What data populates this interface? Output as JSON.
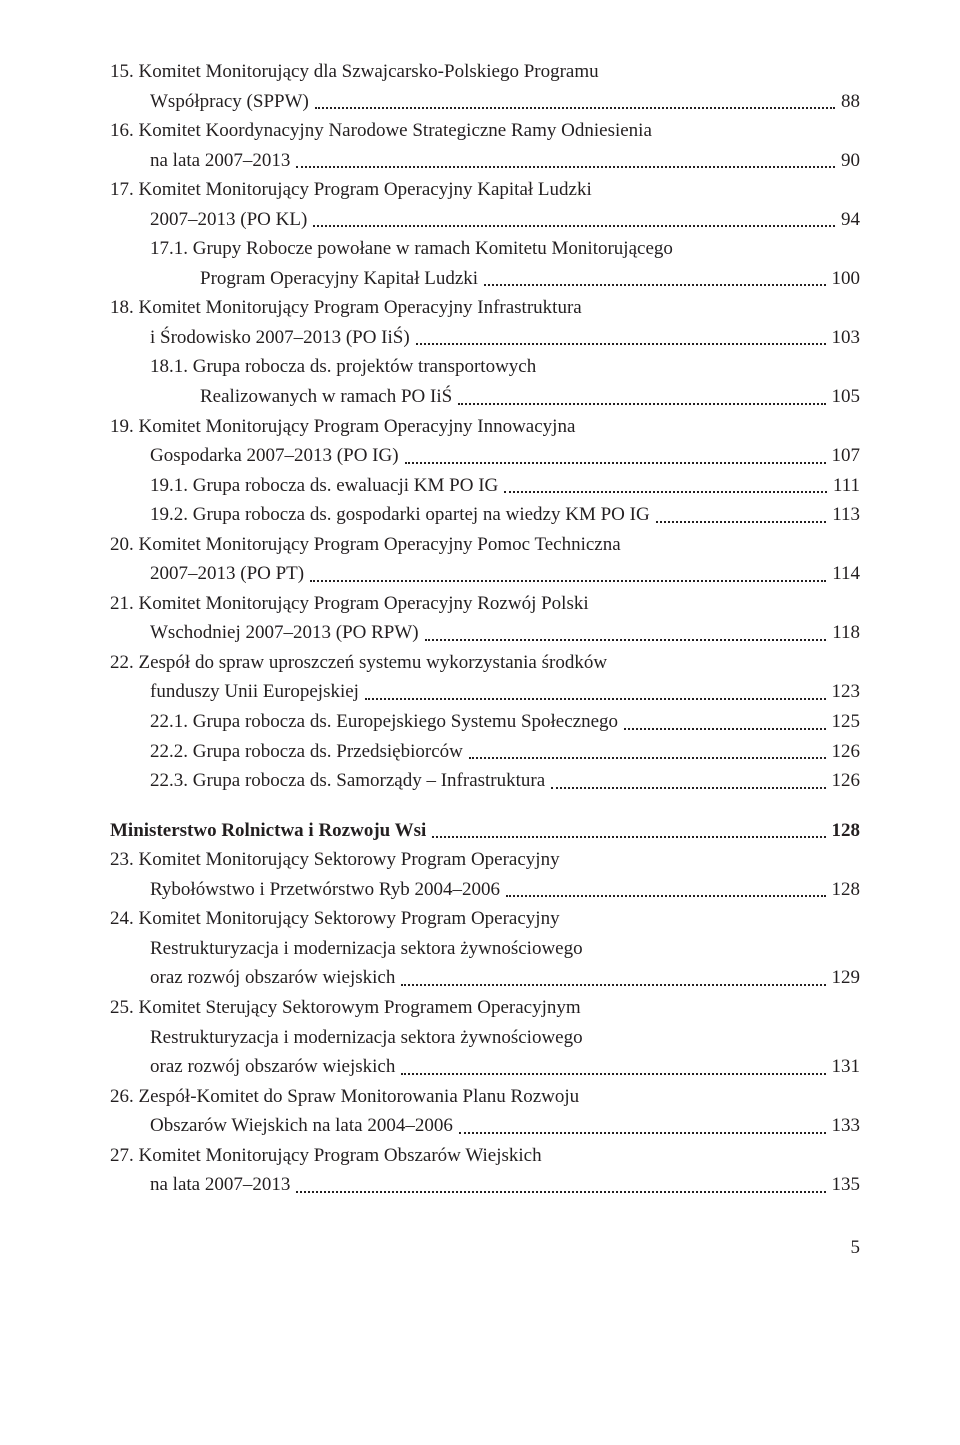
{
  "colors": {
    "text": "#231f20",
    "background": "#ffffff"
  },
  "typography": {
    "font_family": "Times New Roman",
    "body_size_pt": 14,
    "line_height": 1.45
  },
  "page_number": "5",
  "toc": [
    {
      "num": "15.",
      "lines": [
        "Komitet Monitorujący dla Szwajcarsko-Polskiego Programu",
        "Współpracy (SPPW)"
      ],
      "page": "88",
      "bold": false,
      "indent": 1
    },
    {
      "num": "16.",
      "lines": [
        "Komitet Koordynacyjny Narodowe Strategiczne Ramy Odniesienia",
        "na lata 2007–2013"
      ],
      "page": "90",
      "bold": false,
      "indent": 1
    },
    {
      "num": "17.",
      "lines": [
        "Komitet Monitorujący Program Operacyjny Kapitał Ludzki",
        "2007–2013 (PO KL)"
      ],
      "page": "94",
      "bold": false,
      "indent": 1
    },
    {
      "num": "17.1.",
      "lines": [
        "Grupy Robocze powołane w ramach Komitetu Monitorującego",
        "Program Operacyjny Kapitał Ludzki"
      ],
      "page": "100",
      "bold": false,
      "indent": 2
    },
    {
      "num": "18.",
      "lines": [
        "Komitet Monitorujący Program Operacyjny Infrastruktura",
        "i Środowisko 2007–2013 (PO IiŚ)"
      ],
      "page": "103",
      "bold": false,
      "indent": 1
    },
    {
      "num": "18.1.",
      "lines": [
        "Grupa robocza ds. projektów transportowych",
        "Realizowanych w ramach PO IiŚ"
      ],
      "page": "105",
      "bold": false,
      "indent": 2
    },
    {
      "num": "19.",
      "lines": [
        "Komitet Monitorujący Program Operacyjny Innowacyjna",
        "Gospodarka 2007–2013 (PO IG)"
      ],
      "page": "107",
      "bold": false,
      "indent": 1
    },
    {
      "num": "19.1.",
      "lines": [
        "Grupa robocza ds. ewaluacji KM PO IG"
      ],
      "page": "111",
      "bold": false,
      "indent": 2
    },
    {
      "num": "19.2.",
      "lines": [
        "Grupa robocza ds. gospodarki opartej na wiedzy KM PO IG"
      ],
      "page": "113",
      "bold": false,
      "indent": 2
    },
    {
      "num": "20.",
      "lines": [
        "Komitet Monitorujący Program Operacyjny Pomoc Techniczna",
        "2007–2013 (PO PT)"
      ],
      "page": "114",
      "bold": false,
      "indent": 1
    },
    {
      "num": "21.",
      "lines": [
        "Komitet Monitorujący Program Operacyjny Rozwój Polski",
        "Wschodniej 2007–2013 (PO RPW)"
      ],
      "page": "118",
      "bold": false,
      "indent": 1
    },
    {
      "num": "22.",
      "lines": [
        "Zespół do spraw uproszczeń systemu wykorzystania środków",
        "funduszy Unii Europejskiej"
      ],
      "page": "123",
      "bold": false,
      "indent": 1
    },
    {
      "num": "22.1.",
      "lines": [
        "Grupa robocza ds. Europejskiego Systemu Społecznego"
      ],
      "page": "125",
      "bold": false,
      "indent": 2
    },
    {
      "num": "22.2.",
      "lines": [
        "Grupa robocza ds. Przedsiębiorców"
      ],
      "page": "126",
      "bold": false,
      "indent": 2
    },
    {
      "num": "22.3.",
      "lines": [
        "Grupa robocza ds. Samorządy – Infrastruktura"
      ],
      "page": "126",
      "bold": false,
      "indent": 2
    },
    {
      "gap": true
    },
    {
      "num": "",
      "lines": [
        "Ministerstwo Rolnictwa i Rozwoju Wsi"
      ],
      "page": "128",
      "bold": true,
      "indent": 1
    },
    {
      "num": "23.",
      "lines": [
        "Komitet Monitorujący Sektorowy Program Operacyjny",
        "Rybołówstwo i Przetwórstwo Ryb 2004–2006"
      ],
      "page": "128",
      "bold": false,
      "indent": 1
    },
    {
      "num": "24.",
      "lines": [
        "Komitet Monitorujący Sektorowy Program Operacyjny",
        "Restrukturyzacja i modernizacja sektora żywnościowego",
        "oraz rozwój obszarów wiejskich"
      ],
      "page": "129",
      "bold": false,
      "indent": 1
    },
    {
      "num": "25.",
      "lines": [
        "Komitet Sterujący Sektorowym Programem Operacyjnym",
        "Restrukturyzacja i modernizacja sektora żywnościowego",
        "oraz rozwój obszarów wiejskich"
      ],
      "page": "131",
      "bold": false,
      "indent": 1
    },
    {
      "num": "26.",
      "lines": [
        "Zespół-Komitet do Spraw Monitorowania Planu Rozwoju",
        "Obszarów Wiejskich na lata 2004–2006"
      ],
      "page": "133",
      "bold": false,
      "indent": 1
    },
    {
      "num": "27.",
      "lines": [
        "Komitet Monitorujący Program Obszarów Wiejskich",
        "na lata 2007–2013"
      ],
      "page": "135",
      "bold": false,
      "indent": 1
    }
  ]
}
